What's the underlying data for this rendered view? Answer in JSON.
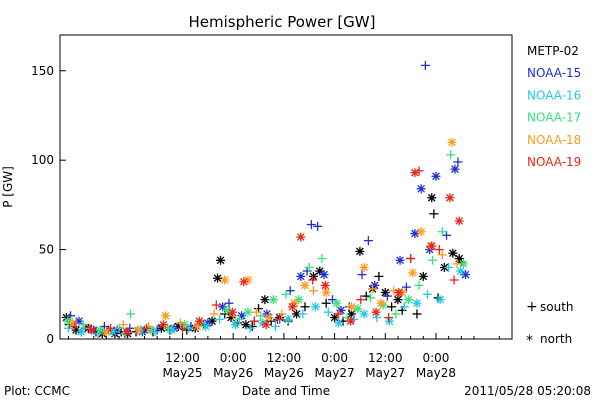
{
  "chart_data": {
    "type": "scatter",
    "title": "Hemispheric Power [GW]",
    "xlabel": "Date and Time",
    "ylabel": "P [GW]",
    "xlim_hours": [
      -17,
      90
    ],
    "ylim": [
      0,
      170
    ],
    "y_ticks": [
      0,
      50,
      100,
      150
    ],
    "x_ticks": [
      {
        "at": 12,
        "time": "12:00",
        "date": "May25"
      },
      {
        "at": 24,
        "time": "0:00",
        "date": "May26"
      },
      {
        "at": 36,
        "time": "12:00",
        "date": "May26"
      },
      {
        "at": 48,
        "time": "0:00",
        "date": "May27"
      },
      {
        "at": 60,
        "time": "12:00",
        "date": "May27"
      },
      {
        "at": 72,
        "time": "0:00",
        "date": "May28"
      }
    ],
    "legend_position": "right",
    "series": [
      {
        "name": "METP-02",
        "color": "#000000"
      },
      {
        "name": "NOAA-15",
        "color": "#1f2fd6"
      },
      {
        "name": "NOAA-16",
        "color": "#22c8e8"
      },
      {
        "name": "NOAA-17",
        "color": "#37e27a"
      },
      {
        "name": "NOAA-18",
        "color": "#ff9a1f"
      },
      {
        "name": "NOAA-19",
        "color": "#e8261a"
      }
    ],
    "marker_legend": [
      {
        "symbol": "+",
        "label": "south"
      },
      {
        "symbol": "*",
        "label": "north"
      }
    ],
    "points": [
      [
        -15.5,
        12,
        0,
        "*"
      ],
      [
        -14.8,
        8,
        0,
        "+"
      ],
      [
        -13.2,
        5,
        0,
        "*"
      ],
      [
        -12.0,
        4,
        0,
        "+"
      ],
      [
        -10.3,
        6,
        0,
        "*"
      ],
      [
        -8.5,
        4,
        0,
        "+"
      ],
      [
        -7.0,
        3,
        0,
        "*"
      ],
      [
        -5.5,
        5,
        0,
        "+"
      ],
      [
        -4.0,
        3,
        0,
        "*"
      ],
      [
        -2.5,
        4,
        0,
        "+"
      ],
      [
        -1.0,
        3,
        0,
        "*"
      ],
      [
        1.0,
        4,
        0,
        "+"
      ],
      [
        3.0,
        5,
        0,
        "*"
      ],
      [
        5.0,
        4,
        0,
        "+"
      ],
      [
        7.0,
        6,
        0,
        "*"
      ],
      [
        9.0,
        5,
        0,
        "+"
      ],
      [
        11.0,
        7,
        0,
        "*"
      ],
      [
        13.0,
        5,
        0,
        "+"
      ],
      [
        15.0,
        6,
        0,
        "*"
      ],
      [
        17.0,
        8,
        0,
        "+"
      ],
      [
        19.0,
        10,
        0,
        "*"
      ],
      [
        20.3,
        34,
        0,
        "*"
      ],
      [
        21.0,
        44,
        0,
        "*"
      ],
      [
        22.0,
        14,
        0,
        "+"
      ],
      [
        23.5,
        12,
        0,
        "*"
      ],
      [
        25.0,
        9,
        0,
        "+"
      ],
      [
        27.0,
        8,
        0,
        "*"
      ],
      [
        28.5,
        7,
        0,
        "+"
      ],
      [
        30.0,
        17,
        0,
        "+"
      ],
      [
        31.5,
        22,
        0,
        "*"
      ],
      [
        33.0,
        10,
        0,
        "+"
      ],
      [
        35.0,
        12,
        0,
        "*"
      ],
      [
        37.0,
        10,
        0,
        "+"
      ],
      [
        39.0,
        14,
        0,
        "*"
      ],
      [
        41.0,
        18,
        0,
        "+"
      ],
      [
        43.0,
        35,
        0,
        "*"
      ],
      [
        44.5,
        38,
        0,
        "*"
      ],
      [
        46.0,
        20,
        0,
        "+"
      ],
      [
        48.0,
        12,
        0,
        "*"
      ],
      [
        50.0,
        10,
        0,
        "+"
      ],
      [
        52.0,
        14,
        0,
        "*"
      ],
      [
        54.0,
        49,
        0,
        "*"
      ],
      [
        55.5,
        24,
        0,
        "+"
      ],
      [
        57.0,
        28,
        0,
        "*"
      ],
      [
        58.5,
        35,
        0,
        "+"
      ],
      [
        60.0,
        26,
        0,
        "*"
      ],
      [
        61.5,
        18,
        0,
        "+"
      ],
      [
        63.0,
        22,
        0,
        "*"
      ],
      [
        64.0,
        16,
        0,
        "+"
      ],
      [
        66.0,
        45,
        0,
        "+"
      ],
      [
        67.5,
        14,
        0,
        "+"
      ],
      [
        69.0,
        35,
        0,
        "*"
      ],
      [
        71.0,
        79,
        0,
        "*"
      ],
      [
        71.5,
        70,
        0,
        "+"
      ],
      [
        72.5,
        23,
        0,
        "+"
      ],
      [
        74.0,
        40,
        0,
        "*"
      ],
      [
        76.0,
        48,
        0,
        "*"
      ],
      [
        77.5,
        45,
        0,
        "*"
      ],
      [
        78.0,
        43,
        0,
        "+"
      ],
      [
        -14.5,
        13,
        1,
        "+"
      ],
      [
        -12.5,
        10,
        1,
        "*"
      ],
      [
        -11.0,
        6,
        1,
        "+"
      ],
      [
        -9.0,
        5,
        1,
        "*"
      ],
      [
        -6.5,
        7,
        1,
        "+"
      ],
      [
        -3.5,
        5,
        1,
        "*"
      ],
      [
        -0.5,
        6,
        1,
        "+"
      ],
      [
        2.5,
        4,
        1,
        "*"
      ],
      [
        6.0,
        5,
        1,
        "+"
      ],
      [
        10.0,
        6,
        1,
        "*"
      ],
      [
        14.0,
        7,
        1,
        "+"
      ],
      [
        18.0,
        9,
        1,
        "*"
      ],
      [
        21.5,
        18,
        1,
        "*"
      ],
      [
        23.0,
        20,
        1,
        "+"
      ],
      [
        26.0,
        13,
        1,
        "*"
      ],
      [
        29.0,
        10,
        1,
        "+"
      ],
      [
        32.0,
        14,
        1,
        "*"
      ],
      [
        34.5,
        11,
        1,
        "+"
      ],
      [
        37.5,
        27,
        1,
        "+"
      ],
      [
        40.0,
        35,
        1,
        "*"
      ],
      [
        41.5,
        38,
        1,
        "+"
      ],
      [
        42.5,
        64,
        1,
        "+"
      ],
      [
        44.0,
        63,
        1,
        "+"
      ],
      [
        45.5,
        36,
        1,
        "*"
      ],
      [
        47.5,
        22,
        1,
        "+"
      ],
      [
        49.5,
        16,
        1,
        "*"
      ],
      [
        51.5,
        18,
        1,
        "+"
      ],
      [
        54.5,
        36,
        1,
        "+"
      ],
      [
        56.0,
        55,
        1,
        "+"
      ],
      [
        57.5,
        30,
        1,
        "*"
      ],
      [
        60.5,
        24,
        1,
        "+"
      ],
      [
        63.5,
        44,
        1,
        "*"
      ],
      [
        65.0,
        29,
        1,
        "+"
      ],
      [
        67.0,
        59,
        1,
        "*"
      ],
      [
        68.5,
        84,
        1,
        "*"
      ],
      [
        69.5,
        153,
        1,
        "+"
      ],
      [
        70.5,
        50,
        1,
        "*"
      ],
      [
        72.0,
        91,
        1,
        "*"
      ],
      [
        74.5,
        58,
        1,
        "+"
      ],
      [
        76.5,
        95,
        1,
        "*"
      ],
      [
        77.2,
        99,
        1,
        "+"
      ],
      [
        79.0,
        36,
        1,
        "*"
      ],
      [
        -15.0,
        6,
        2,
        "+"
      ],
      [
        -12.0,
        4,
        2,
        "*"
      ],
      [
        -8.0,
        3,
        2,
        "+"
      ],
      [
        -4.5,
        4,
        2,
        "*"
      ],
      [
        -1.5,
        3,
        2,
        "+"
      ],
      [
        2.0,
        5,
        2,
        "*"
      ],
      [
        5.5,
        4,
        2,
        "+"
      ],
      [
        9.5,
        5,
        2,
        "*"
      ],
      [
        13.5,
        6,
        2,
        "+"
      ],
      [
        17.5,
        7,
        2,
        "*"
      ],
      [
        20.8,
        11,
        2,
        "+"
      ],
      [
        24.5,
        8,
        2,
        "*"
      ],
      [
        28.0,
        6,
        2,
        "+"
      ],
      [
        31.0,
        9,
        2,
        "*"
      ],
      [
        34.0,
        7,
        2,
        "+"
      ],
      [
        37.0,
        11,
        2,
        "*"
      ],
      [
        40.5,
        14,
        2,
        "+"
      ],
      [
        43.5,
        18,
        2,
        "*"
      ],
      [
        46.5,
        15,
        2,
        "+"
      ],
      [
        49.0,
        9,
        2,
        "*"
      ],
      [
        52.5,
        11,
        2,
        "+"
      ],
      [
        55.0,
        14,
        2,
        "*"
      ],
      [
        58.0,
        12,
        2,
        "+"
      ],
      [
        61.0,
        10,
        2,
        "*"
      ],
      [
        64.5,
        18,
        2,
        "+"
      ],
      [
        67.5,
        20,
        2,
        "*"
      ],
      [
        70.0,
        25,
        2,
        "+"
      ],
      [
        73.0,
        22,
        2,
        "*"
      ],
      [
        75.0,
        40,
        2,
        "+"
      ],
      [
        77.8,
        38,
        2,
        "*"
      ],
      [
        -15.2,
        10,
        3,
        "*"
      ],
      [
        -11.5,
        8,
        3,
        "+"
      ],
      [
        -7.5,
        5,
        3,
        "*"
      ],
      [
        -3.0,
        6,
        3,
        "+"
      ],
      [
        -0.3,
        14,
        3,
        "+"
      ],
      [
        4.5,
        5,
        3,
        "*"
      ],
      [
        8.5,
        6,
        3,
        "+"
      ],
      [
        12.5,
        8,
        3,
        "*"
      ],
      [
        16.5,
        9,
        3,
        "+"
      ],
      [
        22.5,
        16,
        3,
        "*"
      ],
      [
        25.5,
        11,
        3,
        "+"
      ],
      [
        27.5,
        15,
        3,
        "*"
      ],
      [
        30.5,
        13,
        3,
        "+"
      ],
      [
        33.5,
        22,
        3,
        "*"
      ],
      [
        36.5,
        25,
        3,
        "+"
      ],
      [
        39.5,
        22,
        3,
        "*"
      ],
      [
        42.0,
        40,
        3,
        "+"
      ],
      [
        45.0,
        45,
        3,
        "+"
      ],
      [
        48.5,
        20,
        3,
        "*"
      ],
      [
        51.0,
        12,
        3,
        "+"
      ],
      [
        53.5,
        17,
        3,
        "*"
      ],
      [
        56.5,
        23,
        3,
        "+"
      ],
      [
        59.5,
        19,
        3,
        "*"
      ],
      [
        62.5,
        14,
        3,
        "+"
      ],
      [
        65.5,
        22,
        3,
        "*"
      ],
      [
        68.0,
        30,
        3,
        "+"
      ],
      [
        71.2,
        44,
        3,
        "+"
      ],
      [
        73.5,
        60,
        3,
        "+"
      ],
      [
        75.5,
        103,
        3,
        "+"
      ],
      [
        78.5,
        42,
        3,
        "*"
      ],
      [
        -14.0,
        9,
        4,
        "*"
      ],
      [
        -10.0,
        6,
        4,
        "+"
      ],
      [
        -6.0,
        4,
        4,
        "*"
      ],
      [
        -2.0,
        8,
        4,
        "+"
      ],
      [
        1.5,
        5,
        4,
        "*"
      ],
      [
        4.0,
        7,
        4,
        "+"
      ],
      [
        8.0,
        13,
        4,
        "*"
      ],
      [
        11.5,
        9,
        4,
        "+"
      ],
      [
        15.5,
        7,
        4,
        "*"
      ],
      [
        19.5,
        14,
        4,
        "+"
      ],
      [
        22.0,
        33,
        4,
        "*"
      ],
      [
        24.0,
        13,
        4,
        "+"
      ],
      [
        27.5,
        33,
        4,
        "*"
      ],
      [
        29.5,
        15,
        4,
        "+"
      ],
      [
        32.5,
        12,
        4,
        "*"
      ],
      [
        35.5,
        14,
        4,
        "+"
      ],
      [
        38.5,
        20,
        4,
        "*"
      ],
      [
        41.0,
        30,
        4,
        "*"
      ],
      [
        43.0,
        27,
        4,
        "+"
      ],
      [
        46.0,
        26,
        4,
        "*"
      ],
      [
        49.0,
        14,
        4,
        "+"
      ],
      [
        52.0,
        18,
        4,
        "*"
      ],
      [
        55.0,
        40,
        4,
        "*"
      ],
      [
        57.0,
        28,
        4,
        "+"
      ],
      [
        59.0,
        20,
        4,
        "*"
      ],
      [
        62.0,
        27,
        4,
        "+"
      ],
      [
        64.0,
        26,
        4,
        "*"
      ],
      [
        66.5,
        37,
        4,
        "*"
      ],
      [
        68.5,
        60,
        4,
        "*"
      ],
      [
        70.8,
        52,
        4,
        "*"
      ],
      [
        73.5,
        47,
        4,
        "+"
      ],
      [
        75.8,
        110,
        4,
        "*"
      ],
      [
        77.0,
        42,
        4,
        "+"
      ],
      [
        -13.5,
        7,
        5,
        "+"
      ],
      [
        -9.5,
        5,
        5,
        "*"
      ],
      [
        -5.0,
        6,
        5,
        "+"
      ],
      [
        -1.2,
        4,
        5,
        "*"
      ],
      [
        3.5,
        6,
        5,
        "+"
      ],
      [
        7.5,
        8,
        5,
        "*"
      ],
      [
        12.0,
        6,
        5,
        "+"
      ],
      [
        16.0,
        10,
        5,
        "*"
      ],
      [
        20.0,
        19,
        5,
        "+"
      ],
      [
        23.8,
        15,
        5,
        "*"
      ],
      [
        26.5,
        32,
        5,
        "*"
      ],
      [
        29.0,
        10,
        5,
        "+"
      ],
      [
        31.8,
        8,
        5,
        "*"
      ],
      [
        35.0,
        11,
        5,
        "+"
      ],
      [
        38.0,
        18,
        5,
        "*"
      ],
      [
        40.0,
        57,
        5,
        "*"
      ],
      [
        42.8,
        33,
        5,
        "+"
      ],
      [
        45.8,
        30,
        5,
        "*"
      ],
      [
        48.8,
        14,
        5,
        "+"
      ],
      [
        51.8,
        10,
        5,
        "*"
      ],
      [
        54.2,
        22,
        5,
        "+"
      ],
      [
        57.8,
        15,
        5,
        "*"
      ],
      [
        60.8,
        12,
        5,
        "+"
      ],
      [
        63.2,
        26,
        5,
        "*"
      ],
      [
        66.0,
        45,
        5,
        "+"
      ],
      [
        67.0,
        93,
        5,
        "*"
      ],
      [
        68.0,
        94,
        5,
        "+"
      ],
      [
        71.0,
        52,
        5,
        "*"
      ],
      [
        72.8,
        50,
        5,
        "+"
      ],
      [
        75.3,
        79,
        5,
        "*"
      ],
      [
        76.3,
        33,
        5,
        "+"
      ],
      [
        77.5,
        66,
        5,
        "*"
      ]
    ]
  },
  "footer": {
    "left": "Plot: CCMC",
    "right": "2011/05/28 05:20:08"
  }
}
